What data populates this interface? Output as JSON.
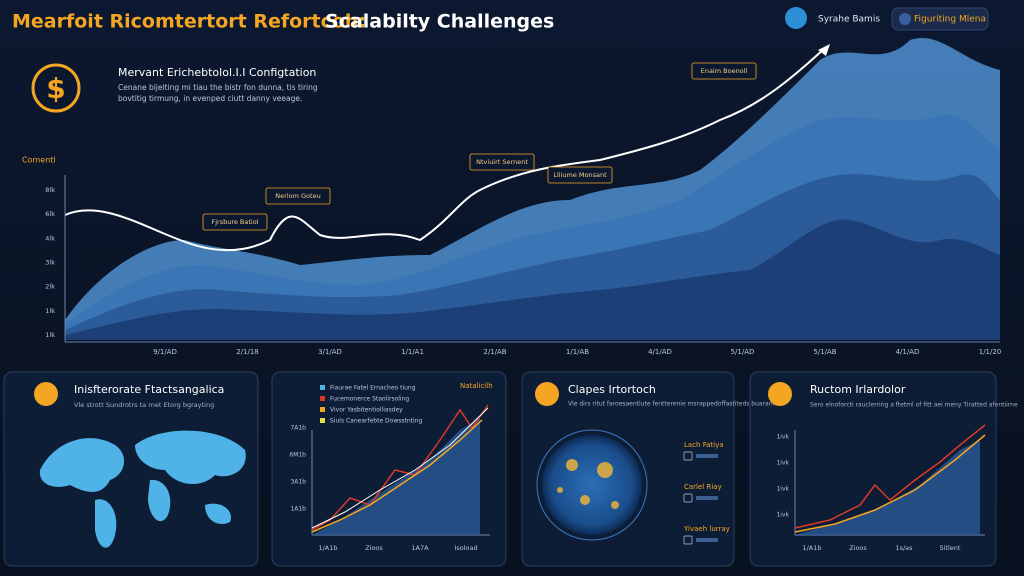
{
  "header": {
    "title_lead": "Mearfoit Ricomtertort Refortcoh:",
    "title_rest": "Scalabilty Challenges",
    "badges": [
      "Syrahe Bamis",
      "Figuriting Mlena"
    ]
  },
  "intro": {
    "heading": "Mervant Erichebtolol.I.I Configtation",
    "lines": [
      "Cenane bijelting mi tiau the bistr fon dunna, tis tiring",
      "bovtitig tirmung, in evenped ciutt danny veeage."
    ]
  },
  "main_chart": {
    "axis_label": "Comentl",
    "y_labels": [
      "8lk",
      "6lk",
      "4lk",
      "3lk",
      "2lk",
      "1lk",
      "1lk"
    ],
    "x_labels": [
      "9/1/AD",
      "2/1/18",
      "3/1/AD",
      "1/1/A1",
      "2/1/AB",
      "1/1/AB",
      "4/1/AD",
      "5/1/AD",
      "5/1/AB",
      "4/1/AD",
      "1/1/20"
    ],
    "annotations": [
      "Fjrsbure Batiol",
      "Nerlom Goteu",
      "Ntviuirt Sernent",
      "Enaim Boenoll",
      "Lliiume Monsant"
    ]
  },
  "panels": [
    {
      "title": "Inisfterorate Ftactsangalica",
      "desc": "Vle strott Sundrotrs ta rnet Etorg bgrayting"
    },
    {
      "tag": "Natalicilh",
      "legend": [
        "Fiaurae Fatel Ernacheo tiung",
        "Fucemonerce Staolirsoling",
        "Vivor Yasbitentiolliasdey",
        "Siuls Canearfebte Dowsstnting"
      ],
      "y_labels": [
        "7A1b",
        "6M1b",
        "3A1b",
        "1A1b"
      ],
      "x_labels": [
        "1/A1b",
        "Zioos",
        "1A7A",
        "Isoload"
      ]
    },
    {
      "title": "Clapes Irtortoch",
      "desc": "Vle dirs ritut faroesaentlute fentterenie msrappedoffastiteds buaranrmr",
      "labels": [
        "Lach Fatiya",
        "Carlel Riay",
        "Yivaeh lurray"
      ]
    },
    {
      "title": "Ructom Irlardolor",
      "desc": "Sero elnoforcti rauclerring a ftetml of fitt aei meny Tiratted afentiirne",
      "y_labels": [
        "1ivk",
        "1ivk",
        "1ivk",
        "1ivk"
      ],
      "x_labels": [
        "1/A1b",
        "Zioos",
        "1s/as",
        "Sitlent"
      ]
    }
  ]
}
